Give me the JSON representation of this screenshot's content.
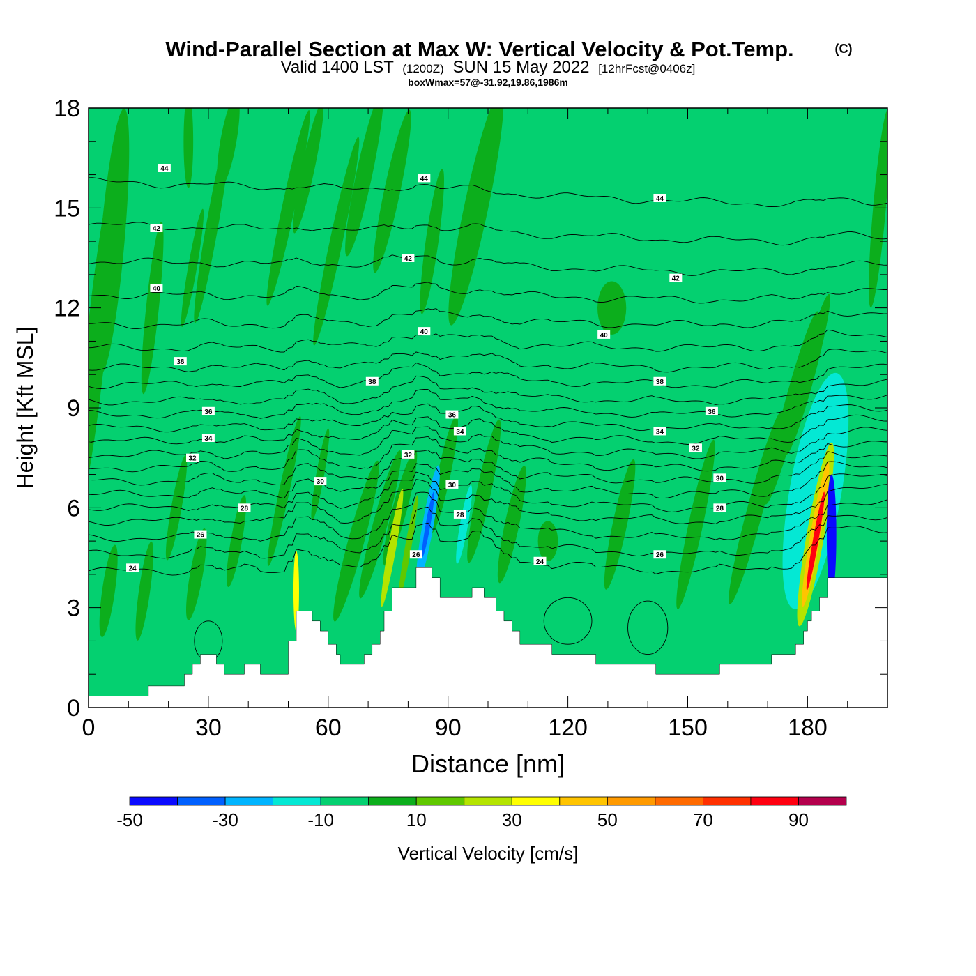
{
  "title": {
    "main": "Wind-Parallel Section at Max W: Vertical Velocity & Pot.Temp.",
    "copyright": "(C)",
    "valid_prefix": "Valid 1400 LST",
    "valid_utc": "(1200Z)",
    "valid_date": "SUN 15 May 2022",
    "forecast": "[12hrFcst@0406z]",
    "box_info": "boxWmax=57@-31.92,19.86,1986m"
  },
  "colors": {
    "background_fill": "#04d070",
    "updraft_light": "#0cae1c",
    "terrain": "#ffffff",
    "contour": "#000000"
  },
  "chart_data": {
    "type": "heatmap",
    "xlabel": "Distance [nm]",
    "ylabel": "Height [Kft MSL]",
    "xlim": [
      0,
      200
    ],
    "ylim": [
      0,
      18
    ],
    "x_ticks": [
      0,
      30,
      60,
      90,
      120,
      150,
      180
    ],
    "y_ticks": [
      0,
      3,
      6,
      9,
      12,
      15,
      18
    ],
    "colorbar": {
      "label": "Vertical Velocity [cm/s]",
      "bounds": [
        -50,
        -40,
        -30,
        -20,
        -10,
        0,
        10,
        20,
        30,
        40,
        50,
        60,
        70,
        80,
        90,
        100
      ],
      "tick_labels": [
        "-50",
        "-30",
        "-10",
        "10",
        "30",
        "50",
        "70",
        "90"
      ],
      "tick_values": [
        -50,
        -30,
        -10,
        10,
        30,
        50,
        70,
        90
      ],
      "colors": [
        "#0a0aff",
        "#0060ff",
        "#00b4ff",
        "#04e8d4",
        "#04d070",
        "#0cae1c",
        "#60c800",
        "#b4e400",
        "#ffff00",
        "#ffc400",
        "#ff9a00",
        "#ff6a00",
        "#ff3000",
        "#ff0010",
        "#b4004c"
      ]
    },
    "terrain_profile": [
      [
        0,
        0.35
      ],
      [
        15,
        0.35
      ],
      [
        15,
        0.65
      ],
      [
        24,
        0.65
      ],
      [
        24,
        1.0
      ],
      [
        26,
        1.0
      ],
      [
        26,
        1.3
      ],
      [
        28,
        1.3
      ],
      [
        28,
        1.6
      ],
      [
        32,
        1.6
      ],
      [
        32,
        1.3
      ],
      [
        34,
        1.3
      ],
      [
        34,
        1.0
      ],
      [
        39,
        1.0
      ],
      [
        39,
        1.3
      ],
      [
        43,
        1.3
      ],
      [
        43,
        1.0
      ],
      [
        50,
        1.0
      ],
      [
        50,
        2.0
      ],
      [
        52,
        2.0
      ],
      [
        52,
        2.9
      ],
      [
        56,
        2.9
      ],
      [
        56,
        2.6
      ],
      [
        58,
        2.6
      ],
      [
        58,
        2.3
      ],
      [
        60,
        2.3
      ],
      [
        60,
        1.9
      ],
      [
        62,
        1.9
      ],
      [
        62,
        1.6
      ],
      [
        63,
        1.6
      ],
      [
        63,
        1.3
      ],
      [
        69,
        1.3
      ],
      [
        69,
        1.6
      ],
      [
        71,
        1.6
      ],
      [
        71,
        1.9
      ],
      [
        73,
        1.9
      ],
      [
        73,
        2.3
      ],
      [
        74,
        2.3
      ],
      [
        74,
        2.9
      ],
      [
        76,
        2.9
      ],
      [
        76,
        3.6
      ],
      [
        82,
        3.6
      ],
      [
        82,
        4.2
      ],
      [
        86,
        4.2
      ],
      [
        86,
        3.9
      ],
      [
        88,
        3.9
      ],
      [
        88,
        3.3
      ],
      [
        96,
        3.3
      ],
      [
        96,
        3.6
      ],
      [
        99,
        3.6
      ],
      [
        99,
        3.3
      ],
      [
        102,
        3.3
      ],
      [
        102,
        2.9
      ],
      [
        104,
        2.9
      ],
      [
        104,
        2.6
      ],
      [
        106,
        2.6
      ],
      [
        106,
        2.3
      ],
      [
        108,
        2.3
      ],
      [
        108,
        1.9
      ],
      [
        116,
        1.9
      ],
      [
        116,
        1.6
      ],
      [
        127,
        1.6
      ],
      [
        127,
        1.3
      ],
      [
        142,
        1.3
      ],
      [
        142,
        1.0
      ],
      [
        158,
        1.0
      ],
      [
        158,
        1.3
      ],
      [
        171,
        1.3
      ],
      [
        171,
        1.6
      ],
      [
        177,
        1.6
      ],
      [
        177,
        1.9
      ],
      [
        179,
        1.9
      ],
      [
        179,
        2.3
      ],
      [
        180,
        2.3
      ],
      [
        180,
        2.6
      ],
      [
        181,
        2.6
      ],
      [
        181,
        2.9
      ],
      [
        183,
        2.9
      ],
      [
        183,
        3.3
      ],
      [
        185,
        3.3
      ],
      [
        185,
        3.9
      ],
      [
        200,
        3.9
      ]
    ],
    "isentropes": {
      "levels": [
        24,
        25,
        26,
        27,
        28,
        29,
        30,
        31,
        32,
        33,
        34,
        35,
        36,
        37,
        38,
        39,
        40,
        41,
        42,
        43,
        44
      ],
      "base_heights": [
        4.1,
        4.6,
        5.1,
        5.6,
        6.0,
        6.4,
        6.8,
        7.2,
        7.6,
        8.0,
        8.4,
        8.8,
        9.2,
        9.7,
        10.2,
        10.8,
        11.5,
        12.3,
        13.2,
        14.2,
        15.4
      ],
      "labels": [
        {
          "text": "44",
          "x": 19,
          "y": 16.2
        },
        {
          "text": "44",
          "x": 84,
          "y": 15.9
        },
        {
          "text": "44",
          "x": 143,
          "y": 15.3
        },
        {
          "text": "42",
          "x": 17,
          "y": 14.4
        },
        {
          "text": "42",
          "x": 80,
          "y": 13.5
        },
        {
          "text": "42",
          "x": 147,
          "y": 12.9
        },
        {
          "text": "40",
          "x": 17,
          "y": 12.6
        },
        {
          "text": "40",
          "x": 84,
          "y": 11.3
        },
        {
          "text": "40",
          "x": 129,
          "y": 11.2
        },
        {
          "text": "38",
          "x": 23,
          "y": 10.4
        },
        {
          "text": "38",
          "x": 71,
          "y": 9.8
        },
        {
          "text": "38",
          "x": 143,
          "y": 9.8
        },
        {
          "text": "36",
          "x": 30,
          "y": 8.9
        },
        {
          "text": "36",
          "x": 91,
          "y": 8.8
        },
        {
          "text": "36",
          "x": 156,
          "y": 8.9
        },
        {
          "text": "34",
          "x": 30,
          "y": 8.1
        },
        {
          "text": "34",
          "x": 93,
          "y": 8.3
        },
        {
          "text": "34",
          "x": 143,
          "y": 8.3
        },
        {
          "text": "32",
          "x": 26,
          "y": 7.5
        },
        {
          "text": "32",
          "x": 80,
          "y": 7.6
        },
        {
          "text": "32",
          "x": 152,
          "y": 7.8
        },
        {
          "text": "30",
          "x": 58,
          "y": 6.8
        },
        {
          "text": "30",
          "x": 91,
          "y": 6.7
        },
        {
          "text": "30",
          "x": 158,
          "y": 6.9
        },
        {
          "text": "28",
          "x": 39,
          "y": 6.0
        },
        {
          "text": "28",
          "x": 93,
          "y": 5.8
        },
        {
          "text": "28",
          "x": 158,
          "y": 6.0
        },
        {
          "text": "26",
          "x": 28,
          "y": 5.2
        },
        {
          "text": "26",
          "x": 82,
          "y": 4.6
        },
        {
          "text": "26",
          "x": 143,
          "y": 4.6
        },
        {
          "text": "24",
          "x": 11,
          "y": 4.2
        },
        {
          "text": "24",
          "x": 113,
          "y": 4.4
        }
      ]
    },
    "velocity_features": [
      {
        "x": 2,
        "y": 11,
        "rx": 2.5,
        "ry": 5.0,
        "tilt": 6,
        "value": 5
      },
      {
        "x": 6,
        "y": 14,
        "rx": 3.0,
        "ry": 4.0,
        "tilt": 5,
        "value": 5
      },
      {
        "x": 16,
        "y": 12.0,
        "rx": 1.6,
        "ry": 2.6,
        "tilt": 6,
        "value": 5
      },
      {
        "x": 25,
        "y": 17.0,
        "rx": 1.2,
        "ry": 1.4,
        "tilt": 0,
        "value": 5
      },
      {
        "x": 26,
        "y": 13.2,
        "rx": 1.1,
        "ry": 1.8,
        "tilt": 10,
        "value": 5
      },
      {
        "x": 31,
        "y": 14.5,
        "rx": 1.5,
        "ry": 3.0,
        "tilt": 10,
        "value": 5
      },
      {
        "x": 35,
        "y": 17.0,
        "rx": 2.0,
        "ry": 1.4,
        "tilt": 10,
        "value": 5
      },
      {
        "x": 50,
        "y": 15.0,
        "rx": 1.6,
        "ry": 3.0,
        "tilt": 12,
        "value": 5
      },
      {
        "x": 55,
        "y": 16.2,
        "rx": 1.6,
        "ry": 2.0,
        "tilt": 12,
        "value": 5
      },
      {
        "x": 62,
        "y": 14.0,
        "rx": 1.6,
        "ry": 3.2,
        "tilt": 12,
        "value": 5
      },
      {
        "x": 69,
        "y": 16.0,
        "rx": 2.0,
        "ry": 2.5,
        "tilt": 12,
        "value": 5
      },
      {
        "x": 76,
        "y": 15.5,
        "rx": 2.0,
        "ry": 2.5,
        "tilt": 12,
        "value": 5
      },
      {
        "x": 86,
        "y": 14.0,
        "rx": 1.6,
        "ry": 2.2,
        "tilt": 8,
        "value": 5
      },
      {
        "x": 97,
        "y": 15.0,
        "rx": 3.0,
        "ry": 3.6,
        "tilt": 12,
        "value": 5
      },
      {
        "x": 131,
        "y": 12.0,
        "rx": 3.6,
        "ry": 0.8,
        "tilt": 0,
        "value": 5
      },
      {
        "x": 115,
        "y": 5.0,
        "rx": 2.5,
        "ry": 0.6,
        "tilt": 0,
        "value": 5
      },
      {
        "x": 5,
        "y": 3.5,
        "rx": 1.6,
        "ry": 1.4,
        "tilt": 8,
        "value": 5
      },
      {
        "x": 14,
        "y": 3.5,
        "rx": 1.4,
        "ry": 1.5,
        "tilt": 8,
        "value": 5
      },
      {
        "x": 22,
        "y": 6.0,
        "rx": 1.3,
        "ry": 1.6,
        "tilt": 10,
        "value": 5
      },
      {
        "x": 27,
        "y": 4.0,
        "rx": 1.6,
        "ry": 1.4,
        "tilt": 10,
        "value": 5
      },
      {
        "x": 37,
        "y": 5.0,
        "rx": 1.4,
        "ry": 1.4,
        "tilt": 10,
        "value": 5
      },
      {
        "x": 49,
        "y": 6.5,
        "rx": 1.3,
        "ry": 2.3,
        "tilt": 12,
        "value": 5
      },
      {
        "x": 58,
        "y": 7.0,
        "rx": 1.0,
        "ry": 1.4,
        "tilt": 10,
        "value": 5
      },
      {
        "x": 67,
        "y": 5.0,
        "rx": 2.0,
        "ry": 2.5,
        "tilt": 15,
        "value": 5
      },
      {
        "x": 73,
        "y": 5.5,
        "rx": 1.8,
        "ry": 2.3,
        "tilt": 15,
        "value": 5
      },
      {
        "x": 78,
        "y": 6.0,
        "rx": 1.8,
        "ry": 1.8,
        "tilt": 15,
        "value": 5
      },
      {
        "x": 89,
        "y": 7.0,
        "rx": 1.6,
        "ry": 1.8,
        "tilt": 12,
        "value": 5
      },
      {
        "x": 99,
        "y": 6.5,
        "rx": 1.8,
        "ry": 2.2,
        "tilt": 12,
        "value": 5
      },
      {
        "x": 106,
        "y": 5.5,
        "rx": 1.8,
        "ry": 1.8,
        "tilt": 12,
        "value": 5
      },
      {
        "x": 133,
        "y": 5.5,
        "rx": 1.8,
        "ry": 2.0,
        "tilt": 12,
        "value": 5
      },
      {
        "x": 152,
        "y": 5.5,
        "rx": 1.8,
        "ry": 2.6,
        "tilt": 12,
        "value": 5
      },
      {
        "x": 167,
        "y": 6.0,
        "rx": 2.0,
        "ry": 3.0,
        "tilt": 15,
        "value": 5
      },
      {
        "x": 176,
        "y": 9.0,
        "rx": 2.0,
        "ry": 3.0,
        "tilt": 15,
        "value": 5
      },
      {
        "x": 180,
        "y": 10.0,
        "rx": 1.8,
        "ry": 2.5,
        "tilt": 15,
        "value": 5
      },
      {
        "x": 198,
        "y": 15.0,
        "rx": 1.6,
        "ry": 3.0,
        "tilt": 5,
        "value": 5
      },
      {
        "x": 182,
        "y": 6.5,
        "rx": 6.5,
        "ry": 3.6,
        "tilt": 10,
        "value": -15
      },
      {
        "x": 182,
        "y": 5.2,
        "rx": 2.2,
        "ry": 2.8,
        "tilt": 10,
        "value": 25
      },
      {
        "x": 182,
        "y": 5.2,
        "rx": 1.3,
        "ry": 2.2,
        "tilt": 10,
        "value": 45
      },
      {
        "x": 182,
        "y": 5.0,
        "rx": 0.7,
        "ry": 1.5,
        "tilt": 10,
        "value": 85
      },
      {
        "x": 186,
        "y": 5.2,
        "rx": 1.2,
        "ry": 1.8,
        "tilt": 0,
        "value": -45
      },
      {
        "x": 85,
        "y": 5.5,
        "rx": 1.4,
        "ry": 1.8,
        "tilt": 10,
        "value": -25
      },
      {
        "x": 85,
        "y": 5.5,
        "rx": 0.6,
        "ry": 1.0,
        "tilt": 10,
        "value": -40
      },
      {
        "x": 94,
        "y": 5.5,
        "rx": 1.0,
        "ry": 1.2,
        "tilt": 10,
        "value": -15
      },
      {
        "x": 76,
        "y": 4.8,
        "rx": 1.0,
        "ry": 1.8,
        "tilt": 10,
        "value": 25
      },
      {
        "x": 80,
        "y": 4.8,
        "rx": 0.8,
        "ry": 1.6,
        "tilt": 10,
        "value": 15
      },
      {
        "x": 52,
        "y": 3.5,
        "rx": 0.7,
        "ry": 1.2,
        "tilt": 0,
        "value": 35
      }
    ]
  }
}
